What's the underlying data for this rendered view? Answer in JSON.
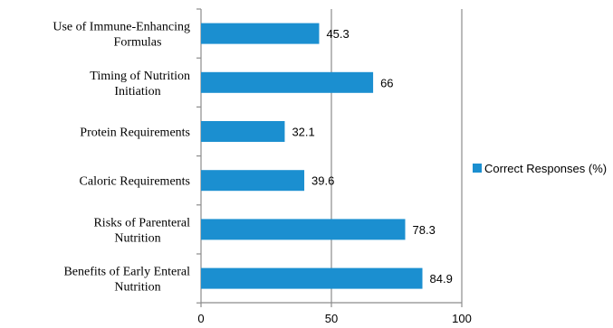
{
  "chart_data": {
    "type": "bar",
    "orientation": "horizontal",
    "categories": [
      "Use of Immune-Enhancing Formulas",
      "Timing of Nutrition Initiation",
      "Protein Requirements",
      "Caloric Requirements",
      "Risks of Parenteral Nutrition",
      "Benefits of Early Enteral Nutrition"
    ],
    "series": [
      {
        "name": "Correct Responses (%)",
        "values": [
          45.3,
          66,
          32.1,
          39.6,
          78.3,
          84.9
        ],
        "color": "#1b8fd0"
      }
    ],
    "value_labels": [
      "45.3",
      "66",
      "32.1",
      "39.6",
      "78.3",
      "84.9"
    ],
    "xlim": [
      0,
      100
    ],
    "xticks": [
      0,
      50,
      100
    ],
    "xtick_labels": [
      "0",
      "50",
      "100"
    ],
    "grid": "vertical",
    "gridline_color": "#8c8c8c",
    "legend_position": "right",
    "title": "",
    "xlabel": "",
    "ylabel": ""
  }
}
